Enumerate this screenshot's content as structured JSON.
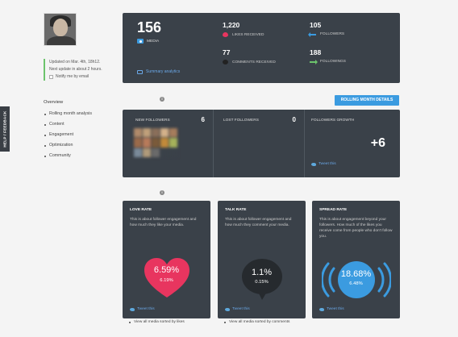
{
  "feedback_tab": "HELP / FEEDBACK",
  "sidebar": {
    "update_line1": "Updated on Mar. 4th, 18h12.",
    "update_line2": "Next update in about 2 hours.",
    "notify_label": "Notify me by email",
    "nav_title": "Overview",
    "nav_items": [
      "Rolling month analysis",
      "Content",
      "Engagement",
      "Optimization",
      "Community"
    ]
  },
  "stats": {
    "media_count": "156",
    "media_label": "MEDIA",
    "likes_count": "1,220",
    "likes_label": "LIKES RECEIVED",
    "comments_count": "77",
    "comments_label": "COMMENTS RECEIVED",
    "followers_count": "105",
    "followers_label": "FOLLOWERS",
    "followings_count": "188",
    "followings_label": "FOLLOWINGS",
    "summary_link": "Summary analytics"
  },
  "rolling_button": "ROLLING MONTH DETAILS",
  "followers_panel": {
    "new_label": "NEW FOLLOWERS",
    "new_count": "6",
    "lost_label": "LOST FOLLOWERS",
    "lost_count": "0",
    "growth_label": "FOLLOWERS GROWTH",
    "growth_value": "+6",
    "tweet": "Tweet this"
  },
  "rates": {
    "love": {
      "title": "LOVE RATE",
      "desc": "This is about follower engagement and how much they like your media.",
      "value": "6.59%",
      "sub": "6.19%",
      "tweet": "Tweet this"
    },
    "talk": {
      "title": "TALK RATE",
      "desc": "This is about follower engagement and how much they comment your media.",
      "value": "1.1%",
      "sub": "0.15%",
      "tweet": "Tweet this"
    },
    "spread": {
      "title": "SPREAD RATE",
      "desc": "This is about engagement beyond your followers. How much of the likes you receive come from people who don't follow you.",
      "value": "18.68%",
      "sub": "6.48%",
      "tweet": "Tweet this"
    }
  },
  "footer": {
    "likes_link": "View all media sorted by likes",
    "comments_link": "View all media sorted by comments"
  },
  "colors": {
    "panel": "#3a4149",
    "accent_blue": "#3b9be0",
    "love_red": "#e8355f",
    "talk_dark": "#262a2e",
    "growth_green": "#6cc36c"
  }
}
